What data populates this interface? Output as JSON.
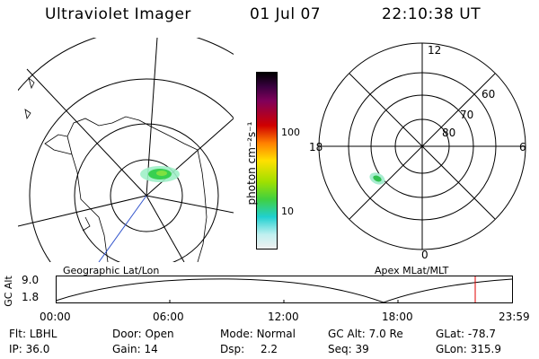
{
  "header": {
    "title": "Ultraviolet Imager",
    "date": "01 Jul 07",
    "time": "22:10:38 UT"
  },
  "colorbar": {
    "unit_label": "photon cm⁻²s⁻¹",
    "ticks": [
      "100",
      "10"
    ]
  },
  "polar_plot": {
    "hour_labels": [
      "12",
      "18",
      "6",
      "0"
    ],
    "lat_labels": [
      "60",
      "70",
      "80"
    ]
  },
  "timeline": {
    "left_caption": "Geographic Lat/Lon",
    "right_caption": "Apex MLat/MLT",
    "y_label": "GC Alt",
    "y_ticks": [
      "9.0",
      "1.8"
    ],
    "x_ticks": [
      "00:00",
      "06:00",
      "12:00",
      "18:00",
      "23:59"
    ],
    "marker_color": "#e00000"
  },
  "status": {
    "row1": [
      {
        "key": "Flt:",
        "value": "LBHL"
      },
      {
        "key": "Door:",
        "value": "Open"
      },
      {
        "key": "Mode:",
        "value": "Normal"
      },
      {
        "key": "GC Alt:",
        "value": "7.0 Re"
      },
      {
        "key": "GLat:",
        "value": "-78.7"
      }
    ],
    "row2": [
      {
        "key": "IP:",
        "value": "36.0"
      },
      {
        "key": "Gain:",
        "value": "14"
      },
      {
        "key": "Dsp:",
        "value": "2.2"
      },
      {
        "key": "Seq:",
        "value": "39"
      },
      {
        "key": "GLon:",
        "value": "315.9"
      }
    ]
  }
}
